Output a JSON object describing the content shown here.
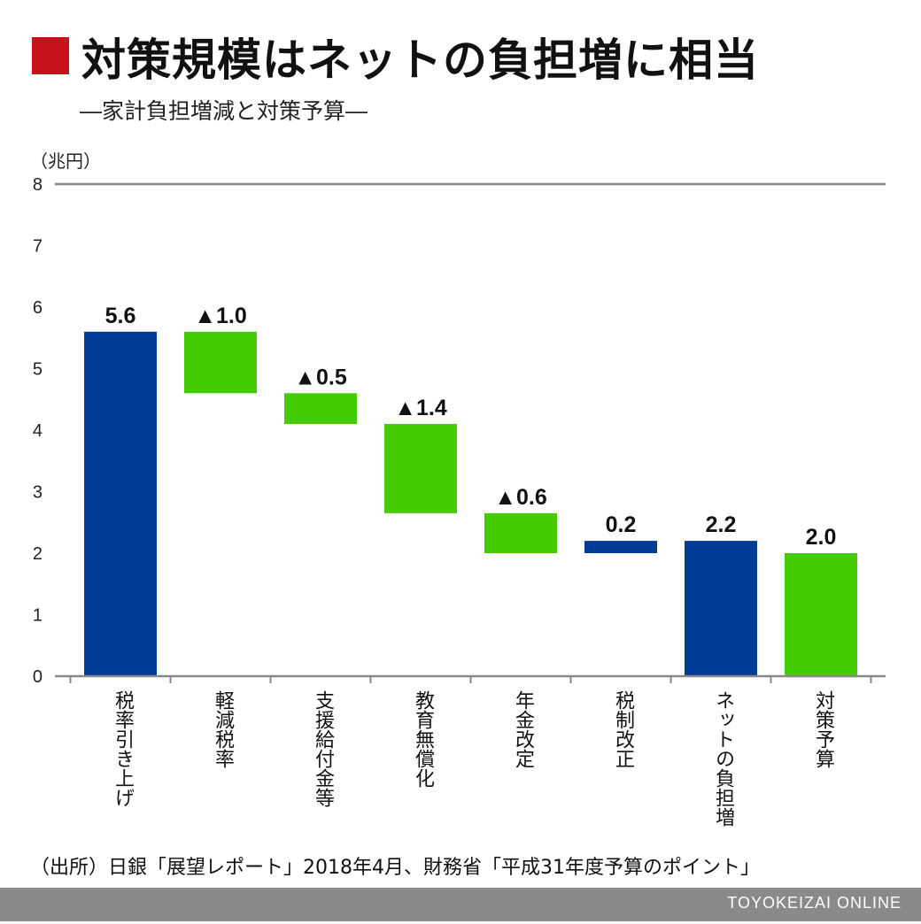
{
  "title": "対策規模はネットの負担増に相当",
  "subtitle": "―家計負担増減と対策予算―",
  "unit_label": "（兆円）",
  "source": "（出所）日銀「展望レポート」2018年4月、財務省「平成31年度予算のポイント」",
  "footer": "TOYOKEIZAI ONLINE",
  "colors": {
    "title_mark": "#c8101a",
    "increase": "#003c96",
    "decrease": "#44cc00",
    "axis": "#888888",
    "footer_bar": "#8a8a8a"
  },
  "chart_data": {
    "type": "bar",
    "subtype": "waterfall",
    "ylim": [
      0,
      8
    ],
    "yticks": [
      "0",
      "1",
      "2",
      "3",
      "4",
      "5",
      "6",
      "7",
      "8"
    ],
    "grid": false,
    "categories": [
      "税率引き上げ",
      "軽減税率",
      "支援給付金等",
      "教育無償化",
      "年金改定",
      "税制改正",
      "ネットの負担増",
      "対策予算"
    ],
    "bars": [
      {
        "category": "税率引き上げ",
        "label": "5.6",
        "bottom": 0,
        "top": 5.6,
        "kind": "increase"
      },
      {
        "category": "軽減税率",
        "label": "▲1.0",
        "bottom": 4.6,
        "top": 5.6,
        "kind": "decrease"
      },
      {
        "category": "支援給付金等",
        "label": "▲0.5",
        "bottom": 4.1,
        "top": 4.6,
        "kind": "decrease"
      },
      {
        "category": "教育無償化",
        "label": "▲1.4",
        "bottom": 2.65,
        "top": 4.1,
        "kind": "decrease"
      },
      {
        "category": "年金改定",
        "label": "▲0.6",
        "bottom": 2.0,
        "top": 2.65,
        "kind": "decrease"
      },
      {
        "category": "税制改正",
        "label": "0.2",
        "bottom": 2.0,
        "top": 2.2,
        "kind": "increase"
      },
      {
        "category": "ネットの負担増",
        "label": "2.2",
        "bottom": 0,
        "top": 2.2,
        "kind": "increase"
      },
      {
        "category": "対策予算",
        "label": "2.0",
        "bottom": 0,
        "top": 2.0,
        "kind": "decrease"
      }
    ]
  }
}
